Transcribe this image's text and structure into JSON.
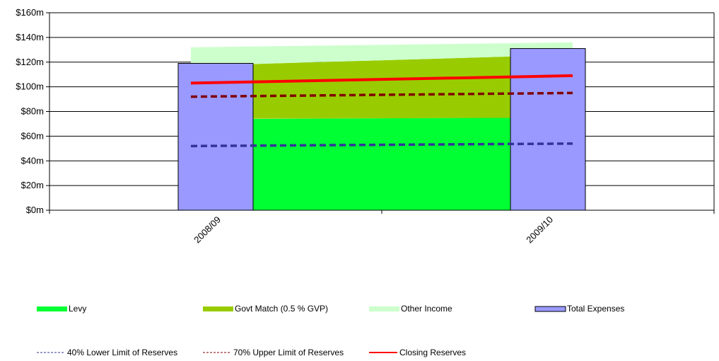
{
  "chart_data": {
    "type": "area",
    "categories": [
      "2008/09",
      "2009/10"
    ],
    "y_tick_labels": [
      "$0m",
      "$20m",
      "$40m",
      "$60m",
      "$80m",
      "$100m",
      "$120m",
      "$140m",
      "$160m"
    ],
    "ylim": [
      0,
      160
    ],
    "series": [
      {
        "name": "Levy",
        "kind": "stacked-area",
        "color": "#00ff33",
        "values": [
          74,
          75
        ]
      },
      {
        "name": "Govt Match (0.5 % GVP)",
        "kind": "stacked-area",
        "color": "#99cc00",
        "values": [
          43,
          51
        ]
      },
      {
        "name": "Other Income",
        "kind": "stacked-area",
        "color": "#ccffcc",
        "values": [
          15,
          10
        ]
      },
      {
        "name": "Total Expenses",
        "kind": "bar",
        "color": "#9999ff",
        "values": [
          119,
          131
        ]
      },
      {
        "name": "40% Lower Limit of Reserves",
        "kind": "dashed-line",
        "color": "#333399",
        "values": [
          52,
          54
        ]
      },
      {
        "name": "70% Upper Limit of Reserves",
        "kind": "dashed-line",
        "color": "#800000",
        "values": [
          92,
          95
        ]
      },
      {
        "name": "Closing Reserves",
        "kind": "line",
        "color": "#ff0000",
        "values": [
          103,
          109
        ]
      }
    ],
    "legend_position": "bottom",
    "grid": true
  }
}
